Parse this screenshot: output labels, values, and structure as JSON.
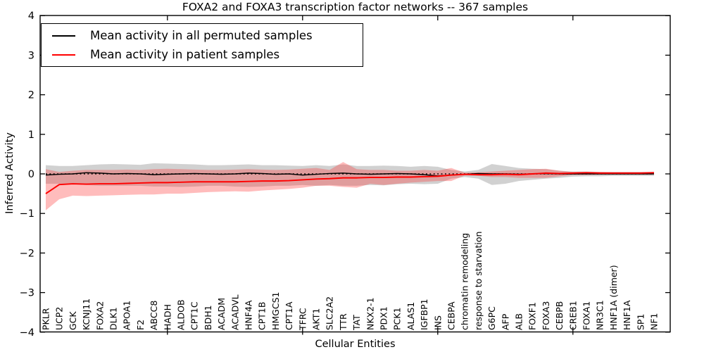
{
  "figure": {
    "background": "#ffffff"
  },
  "chart_data": {
    "type": "line",
    "title": "FOXA2 and FOXA3 transcription factor networks -- 367 samples",
    "xlabel": "Cellular Entities",
    "ylabel": "Inferred Activity",
    "ylim": [
      -4,
      4
    ],
    "ytick_values": [
      4,
      3,
      2,
      1,
      0,
      -1,
      -2,
      -3,
      -4
    ],
    "ytick_labels": [
      "4",
      "3",
      "2",
      "1",
      "0",
      "−1",
      "−2",
      "−3",
      "−4"
    ],
    "x_major_tick_indices": [
      9,
      19,
      29,
      39
    ],
    "grid": false,
    "legend_position": "upper-left",
    "categories": [
      "PKLR",
      "UCP2",
      "GCK",
      "KCNJ11",
      "FOXA2",
      "DLK1",
      "APOA1",
      "F2",
      "ABCC8",
      "HADH",
      "ALDOB",
      "CPT1C",
      "BDH1",
      "ACADM",
      "ACADVL",
      "HNF4A",
      "CPT1B",
      "HMGCS1",
      "CPT1A",
      "TFRC",
      "AKT1",
      "SLC2A2",
      "TTR",
      "TAT",
      "NKX2-1",
      "PDX1",
      "PCK1",
      "ALAS1",
      "IGFBP1",
      "INS",
      "CEBPA",
      "chromatin remodeling",
      "response to starvation",
      "G6PC",
      "AFP",
      "ALB",
      "FOXF1",
      "FOXA3",
      "CEBPB",
      "CREB1",
      "FOXA1",
      "NR3C1",
      "HNF1A (dimer)",
      "HNF1A",
      "SP1",
      "NF1"
    ],
    "series": [
      {
        "name": "Mean activity in all permuted samples",
        "color": "#000000",
        "style": "solid",
        "values": [
          -0.03,
          -0.01,
          0.0,
          0.03,
          0.02,
          0.0,
          0.01,
          0.0,
          -0.02,
          -0.01,
          0.0,
          0.01,
          0.0,
          -0.01,
          0.0,
          0.02,
          0.01,
          -0.01,
          0.0,
          -0.03,
          -0.01,
          0.01,
          0.02,
          0.0,
          -0.01,
          0.0,
          0.01,
          0.0,
          -0.02,
          -0.05,
          -0.03,
          -0.01,
          0.01,
          0.0,
          0.0,
          -0.01,
          0.0,
          0.01,
          0.0,
          0.0,
          0.0,
          0.0,
          0.0,
          0.0,
          0.0,
          0.0
        ]
      },
      {
        "name": "Mean activity in patient samples",
        "color": "#ff0000",
        "style": "solid",
        "values": [
          -0.5,
          -0.27,
          -0.25,
          -0.26,
          -0.25,
          -0.25,
          -0.24,
          -0.23,
          -0.22,
          -0.22,
          -0.21,
          -0.2,
          -0.2,
          -0.2,
          -0.2,
          -0.19,
          -0.18,
          -0.18,
          -0.17,
          -0.15,
          -0.13,
          -0.12,
          -0.1,
          -0.1,
          -0.09,
          -0.09,
          -0.08,
          -0.08,
          -0.07,
          -0.06,
          -0.03,
          -0.01,
          -0.02,
          -0.02,
          -0.01,
          -0.02,
          0.0,
          0.02,
          0.01,
          0.02,
          0.03,
          0.02,
          0.02,
          0.02,
          0.02,
          0.03
        ]
      }
    ],
    "bands": [
      {
        "name": "permuted samples std band",
        "color": "#999999",
        "opacity": 0.45,
        "upper": [
          0.22,
          0.2,
          0.2,
          0.22,
          0.24,
          0.25,
          0.24,
          0.23,
          0.27,
          0.26,
          0.25,
          0.24,
          0.22,
          0.22,
          0.23,
          0.24,
          0.22,
          0.22,
          0.21,
          0.2,
          0.22,
          0.2,
          0.24,
          0.2,
          0.2,
          0.21,
          0.2,
          0.18,
          0.2,
          0.18,
          0.1,
          0.06,
          0.1,
          0.25,
          0.2,
          0.15,
          0.13,
          0.12,
          0.08,
          0.06,
          0.06,
          0.05,
          0.05,
          0.05,
          0.05,
          0.05
        ],
        "lower": [
          -0.25,
          -0.25,
          -0.26,
          -0.28,
          -0.3,
          -0.3,
          -0.3,
          -0.3,
          -0.32,
          -0.32,
          -0.33,
          -0.32,
          -0.3,
          -0.3,
          -0.32,
          -0.33,
          -0.32,
          -0.3,
          -0.3,
          -0.28,
          -0.3,
          -0.28,
          -0.3,
          -0.3,
          -0.28,
          -0.29,
          -0.26,
          -0.25,
          -0.26,
          -0.25,
          -0.12,
          -0.08,
          -0.12,
          -0.28,
          -0.25,
          -0.18,
          -0.15,
          -0.12,
          -0.1,
          -0.07,
          -0.06,
          -0.06,
          -0.05,
          -0.05,
          -0.05,
          -0.05
        ]
      },
      {
        "name": "patient samples std band",
        "color": "#ff3333",
        "opacity": 0.33,
        "upper": [
          0.12,
          0.05,
          0.08,
          0.1,
          0.1,
          0.1,
          0.11,
          0.1,
          0.12,
          0.13,
          0.12,
          0.11,
          0.1,
          0.1,
          0.11,
          0.12,
          0.11,
          0.1,
          0.11,
          0.13,
          0.15,
          0.1,
          0.3,
          0.12,
          0.1,
          0.1,
          0.08,
          0.08,
          0.1,
          0.08,
          0.15,
          0.03,
          0.04,
          0.06,
          0.08,
          0.1,
          0.12,
          0.13,
          0.08,
          0.05,
          0.05,
          0.05,
          0.04,
          0.04,
          0.04,
          0.05
        ],
        "lower": [
          -0.92,
          -0.64,
          -0.55,
          -0.56,
          -0.55,
          -0.54,
          -0.53,
          -0.52,
          -0.52,
          -0.5,
          -0.5,
          -0.48,
          -0.46,
          -0.45,
          -0.44,
          -0.45,
          -0.42,
          -0.4,
          -0.38,
          -0.35,
          -0.3,
          -0.3,
          -0.33,
          -0.35,
          -0.25,
          -0.28,
          -0.25,
          -0.22,
          -0.2,
          -0.18,
          -0.18,
          -0.04,
          -0.05,
          -0.08,
          -0.08,
          -0.1,
          -0.1,
          -0.1,
          -0.06,
          -0.03,
          -0.03,
          -0.02,
          -0.02,
          -0.02,
          -0.02,
          -0.02
        ]
      }
    ],
    "reference_line": {
      "y": 0,
      "color": "#000000",
      "style": "dashed"
    }
  }
}
